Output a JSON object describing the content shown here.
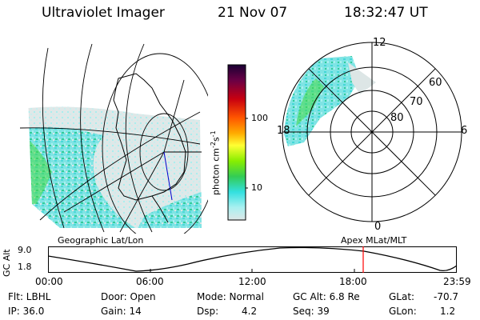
{
  "header": {
    "instrument": "Ultraviolet Imager",
    "date": "21 Nov 07",
    "time": "18:32:47 UT"
  },
  "colorbar": {
    "unit_label": "photon cm",
    "unit_exp1": "-2",
    "unit_mid": "s",
    "unit_exp2": "-1",
    "ticks": [
      "100",
      "10"
    ],
    "colors": [
      "#1a0033",
      "#5a0040",
      "#9e0020",
      "#d00000",
      "#ff4400",
      "#ff9900",
      "#ffd200",
      "#ffff33",
      "#ccff00",
      "#77ee00",
      "#33dd33",
      "#22cc99",
      "#33e0e0",
      "#66eeee",
      "#aaf0f0",
      "#dde6e6"
    ]
  },
  "polar_plot": {
    "mlt_labels": {
      "top": "12",
      "left": "18",
      "right": "6",
      "bottom": "0"
    },
    "lat_labels": [
      "60",
      "70",
      "80"
    ]
  },
  "panel_labels": {
    "geographic": "Geographic Lat/Lon",
    "apex": "Apex MLat/MLT"
  },
  "altitude_plot": {
    "ylabel": "GC Alt",
    "yticks": [
      "9.0",
      "1.8"
    ],
    "xticks": [
      "00:00",
      "06:00",
      "12:00",
      "18:00",
      "23:59"
    ],
    "current_time_color": "#ff0000"
  },
  "footer": {
    "row1": {
      "flt": "Flt: LBHL",
      "door": "Door: Open",
      "mode": "Mode: Normal",
      "gcalt": "GC Alt: 6.8 Re",
      "glat_label": "GLat:",
      "glat_value": "-70.7"
    },
    "row2": {
      "ip": "IP: 36.0",
      "gain": "Gain: 14",
      "dsp_label": "Dsp:",
      "dsp_value": "4.2",
      "seq": "Seq: 39",
      "glon_label": "GLon:",
      "glon_value": "1.2"
    }
  }
}
